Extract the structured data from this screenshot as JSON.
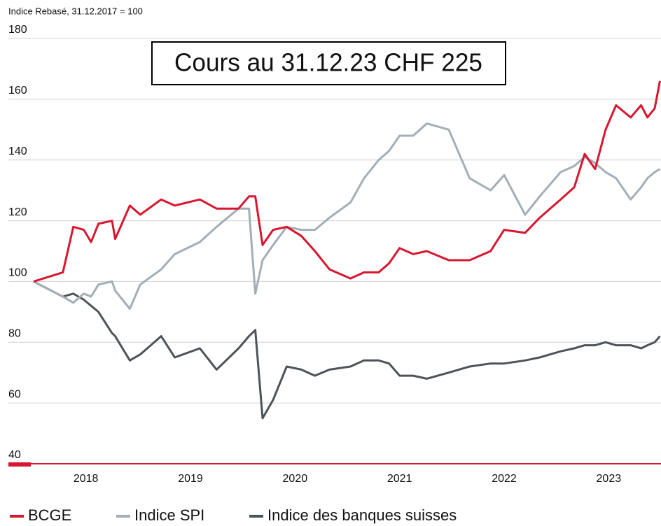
{
  "chart_data": {
    "type": "line",
    "ylabel": "Indice Rebasé, 31.12.2017 = 100",
    "annotation": "Cours au 31.12.23 CHF 225",
    "x": [
      2018.0,
      2018.28,
      2018.38,
      2018.48,
      2018.55,
      2018.62,
      2018.75,
      2018.78,
      2018.92,
      2019.02,
      2019.22,
      2019.35,
      2019.59,
      2019.75,
      2019.96,
      2020.06,
      2020.12,
      2020.19,
      2020.29,
      2020.42,
      2020.56,
      2020.69,
      2020.83,
      2021.03,
      2021.16,
      2021.3,
      2021.4,
      2021.5,
      2021.63,
      2021.76,
      2021.97,
      2022.17,
      2022.37,
      2022.5,
      2022.7,
      2022.84,
      2023.04,
      2023.17,
      2023.27,
      2023.37,
      2023.47,
      2023.57,
      2023.71,
      2023.81,
      2023.87,
      2023.94,
      2023.99
    ],
    "series": [
      {
        "name": "BCGE",
        "color": "#d7172f",
        "values": [
          100,
          103,
          118,
          117,
          113,
          119,
          120,
          114,
          125,
          122,
          127,
          125,
          127,
          124,
          124,
          128,
          128,
          112,
          117,
          118,
          115,
          110,
          104,
          101,
          103,
          103,
          106,
          111,
          109,
          110,
          107,
          107,
          110,
          117,
          116,
          121,
          127,
          131,
          142,
          137,
          150,
          158,
          154,
          158,
          154,
          157,
          166
        ]
      },
      {
        "name": "Indice SPI",
        "color": "#a3aeb6",
        "values": [
          100,
          95,
          93,
          96,
          95,
          99,
          100,
          97,
          91,
          99,
          104,
          109,
          113,
          118,
          124,
          124,
          96,
          107,
          112,
          118,
          117,
          117,
          121,
          126,
          134,
          140,
          143,
          148,
          148,
          152,
          150,
          134,
          130,
          135,
          122,
          128,
          136,
          138,
          141,
          139,
          136,
          134,
          127,
          131,
          134,
          136,
          137
        ]
      },
      {
        "name": "Indice des banques suisses",
        "color": "#4d5358",
        "values": [
          100,
          95,
          96,
          94,
          92,
          90,
          83,
          82,
          74,
          76,
          82,
          75,
          78,
          71,
          78,
          82,
          84,
          55,
          61,
          72,
          71,
          69,
          71,
          72,
          74,
          74,
          73,
          69,
          69,
          68,
          70,
          72,
          73,
          73,
          74,
          75,
          77,
          78,
          79,
          79,
          80,
          79,
          79,
          78,
          79,
          80,
          82
        ]
      }
    ],
    "xlim": [
      2018,
      2024
    ],
    "xticks": [
      {
        "value": 2018.5,
        "label": "2018"
      },
      {
        "value": 2019.5,
        "label": "2019"
      },
      {
        "value": 2020.5,
        "label": "2020"
      },
      {
        "value": 2021.5,
        "label": "2021"
      },
      {
        "value": 2022.5,
        "label": "2022"
      },
      {
        "value": 2023.5,
        "label": "2023"
      }
    ],
    "ylim": [
      40,
      180
    ],
    "yticks": [
      40,
      60,
      80,
      100,
      120,
      140,
      160,
      180
    ],
    "grid": true,
    "legend": "bottom"
  }
}
